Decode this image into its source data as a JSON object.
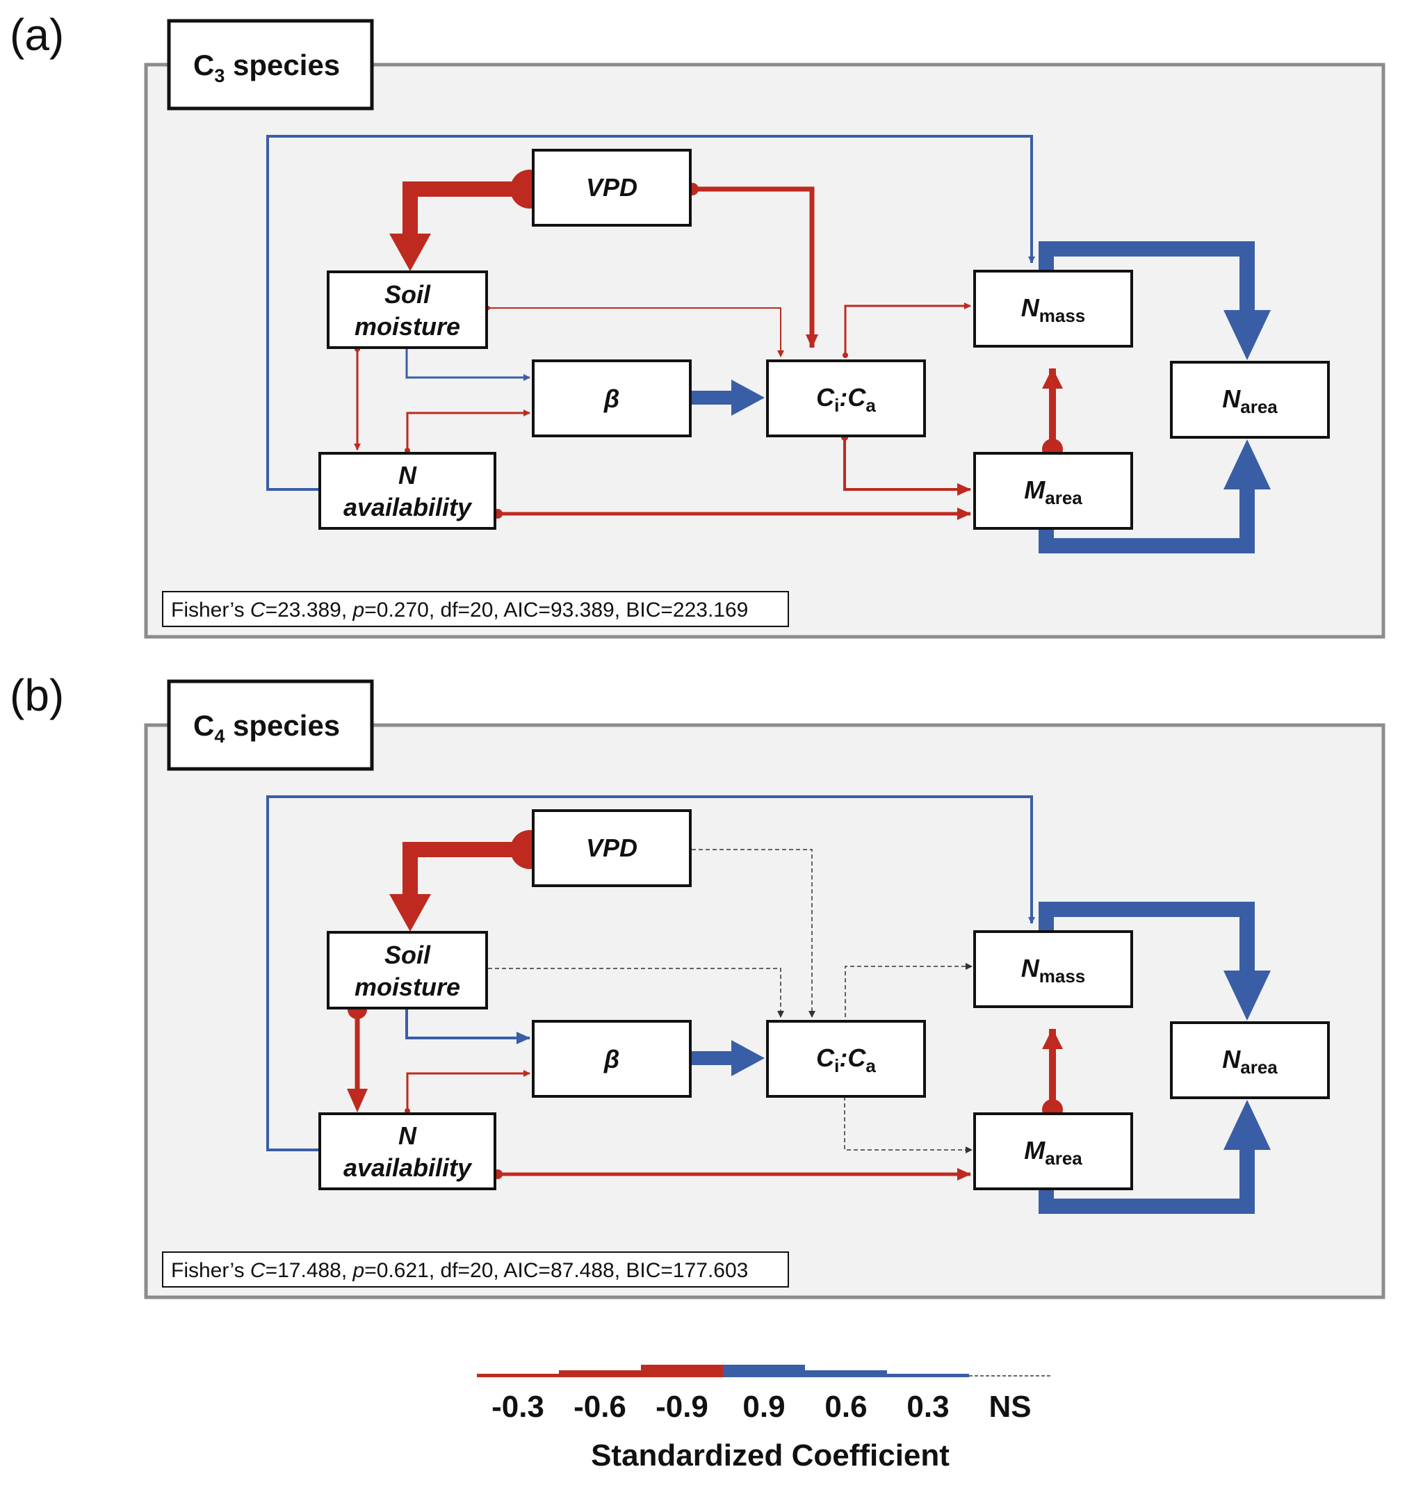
{
  "panels": [
    {
      "letter": "(a)",
      "title_main": "C",
      "title_sub": "3",
      "title_rest": " species",
      "nodes": {
        "vpd": "VPD",
        "soil_1": "Soil",
        "soil_2": "moisture",
        "beta": "β",
        "ci": "C",
        "ci_sub": "i",
        "ci_colon": ":",
        "ca": "C",
        "ca_sub": "a",
        "navail_1": "N",
        "navail_2": "availability",
        "nmass": "N",
        "nmass_sub": "mass",
        "narea": "N",
        "narea_sub": "area",
        "marea": "M",
        "marea_sub": "area"
      },
      "stats": {
        "prefix": "Fisher’s ",
        "c_symbol": "C",
        "c_value": "=23.389, ",
        "p_symbol": "p",
        "rest": "=0.270, df=20, AIC=93.389, BIC=223.169"
      }
    },
    {
      "letter": "(b)",
      "title_main": "C",
      "title_sub": "4",
      "title_rest": " species",
      "nodes": {
        "vpd": "VPD",
        "soil_1": "Soil",
        "soil_2": "moisture",
        "beta": "β",
        "ci": "C",
        "ci_sub": "i",
        "ci_colon": ":",
        "ca": "C",
        "ca_sub": "a",
        "navail_1": "N",
        "navail_2": "availability",
        "nmass": "N",
        "nmass_sub": "mass",
        "narea": "N",
        "narea_sub": "area",
        "marea": "M",
        "marea_sub": "area"
      },
      "stats": {
        "prefix": "Fisher’s ",
        "c_symbol": "C",
        "c_value": "=17.488, ",
        "p_symbol": "p",
        "rest": "=0.621, df=20, AIC=87.488, BIC=177.603"
      }
    }
  ],
  "colors": {
    "negative": "#be2a1f",
    "positive": "#3a5ea6",
    "nonsignificant": "#333333",
    "panel_bg": "#f2f2f2",
    "panel_border": "#8c8c8c"
  },
  "legend": {
    "ticks": [
      "-0.3",
      "-0.6",
      "-0.9",
      "0.9",
      "0.6",
      "0.3",
      "NS"
    ],
    "title": "Standardized Coefficient"
  }
}
